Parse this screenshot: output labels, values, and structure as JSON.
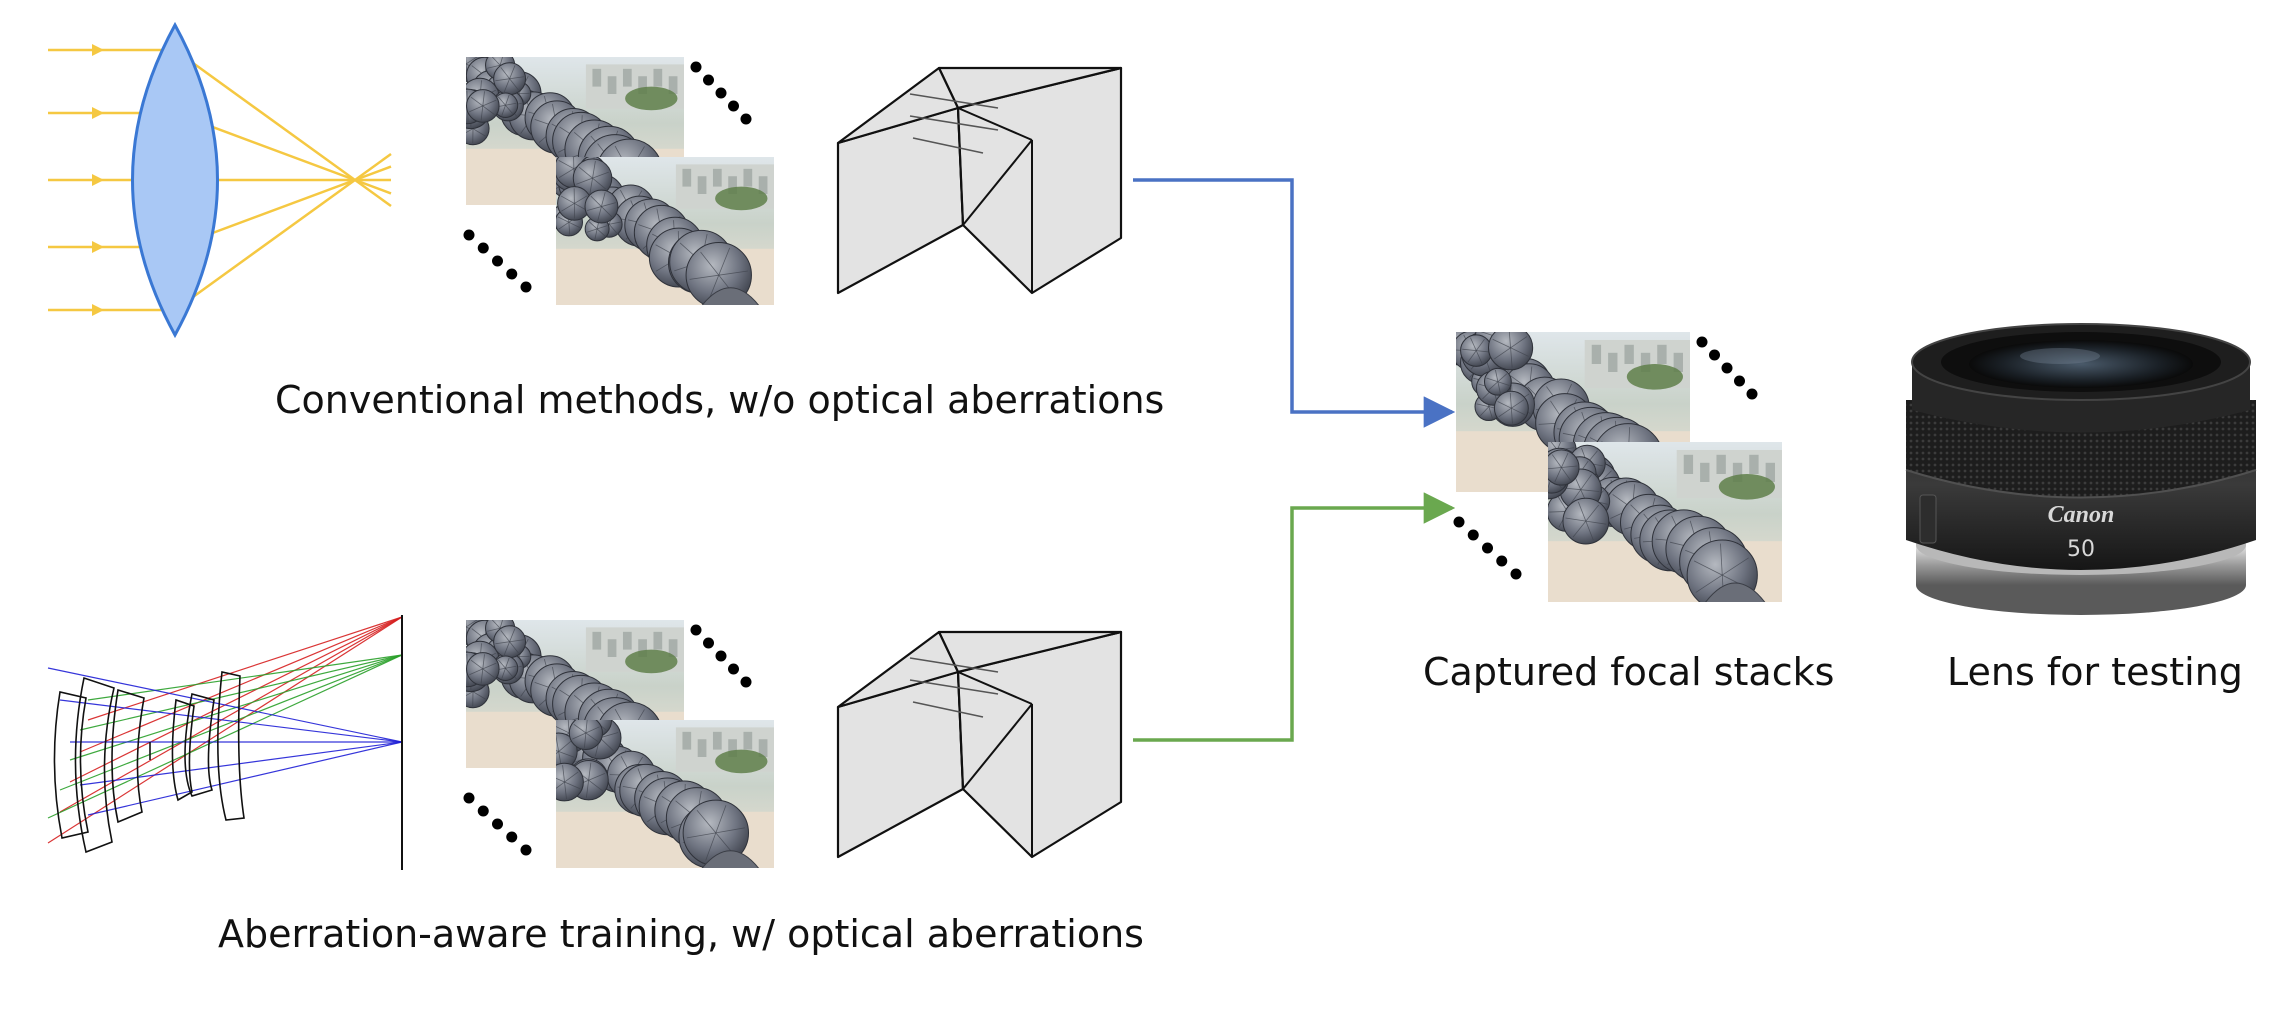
{
  "captions": {
    "conventional": "Conventional methods, w/o optical aberrations",
    "aberration_aware": "Aberration-aware training,  w/ optical aberrations",
    "captured": "Captured focal stacks",
    "lens": "Lens for testing"
  },
  "lens_product": {
    "brand": "Canon",
    "focal": "50"
  },
  "colors": {
    "ray_yellow": "#f5c842",
    "lens_fill": "#a9c8f5",
    "lens_stroke": "#3a78d4",
    "arrow_blue": "#4a72c4",
    "arrow_green": "#6aa84f",
    "ray_red": "#d62020",
    "ray_green": "#2aa02a",
    "ray_blue": "#2020d6"
  }
}
